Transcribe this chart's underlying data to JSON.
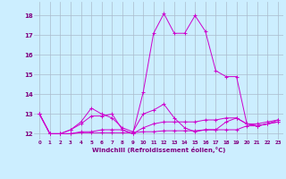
{
  "xlabel": "Windchill (Refroidissement éolien,°C)",
  "xlim": [
    -0.5,
    23.5
  ],
  "ylim": [
    11.7,
    18.7
  ],
  "yticks": [
    12,
    13,
    14,
    15,
    16,
    17,
    18
  ],
  "xticks": [
    0,
    1,
    2,
    3,
    4,
    5,
    6,
    7,
    8,
    9,
    10,
    11,
    12,
    13,
    14,
    15,
    16,
    17,
    18,
    19,
    20,
    21,
    22,
    23
  ],
  "bg_color": "#cceeff",
  "grid_color": "#aabbcc",
  "line_color": "#cc00cc",
  "lines": [
    [
      13.0,
      12.0,
      12.0,
      12.2,
      12.6,
      13.3,
      13.0,
      12.8,
      12.3,
      12.1,
      13.0,
      13.2,
      13.5,
      12.8,
      12.3,
      12.1,
      12.2,
      12.2,
      12.6,
      12.8,
      12.5,
      12.5,
      12.6,
      12.7
    ],
    [
      13.0,
      12.0,
      12.0,
      12.0,
      12.1,
      12.1,
      12.2,
      12.2,
      12.2,
      12.0,
      12.3,
      12.5,
      12.6,
      12.6,
      12.6,
      12.6,
      12.7,
      12.7,
      12.8,
      12.8,
      12.5,
      12.4,
      12.5,
      12.6
    ],
    [
      13.0,
      12.0,
      12.0,
      12.0,
      12.05,
      12.05,
      12.05,
      12.05,
      12.05,
      12.05,
      12.1,
      12.1,
      12.15,
      12.15,
      12.15,
      12.15,
      12.2,
      12.2,
      12.2,
      12.2,
      12.4,
      12.4,
      12.5,
      12.6
    ],
    [
      13.0,
      12.0,
      12.0,
      12.2,
      12.5,
      12.9,
      12.9,
      13.0,
      12.2,
      12.0,
      14.1,
      17.1,
      18.1,
      17.1,
      17.1,
      18.0,
      17.2,
      15.2,
      14.9,
      14.9,
      12.5,
      12.4,
      12.5,
      12.7
    ]
  ]
}
